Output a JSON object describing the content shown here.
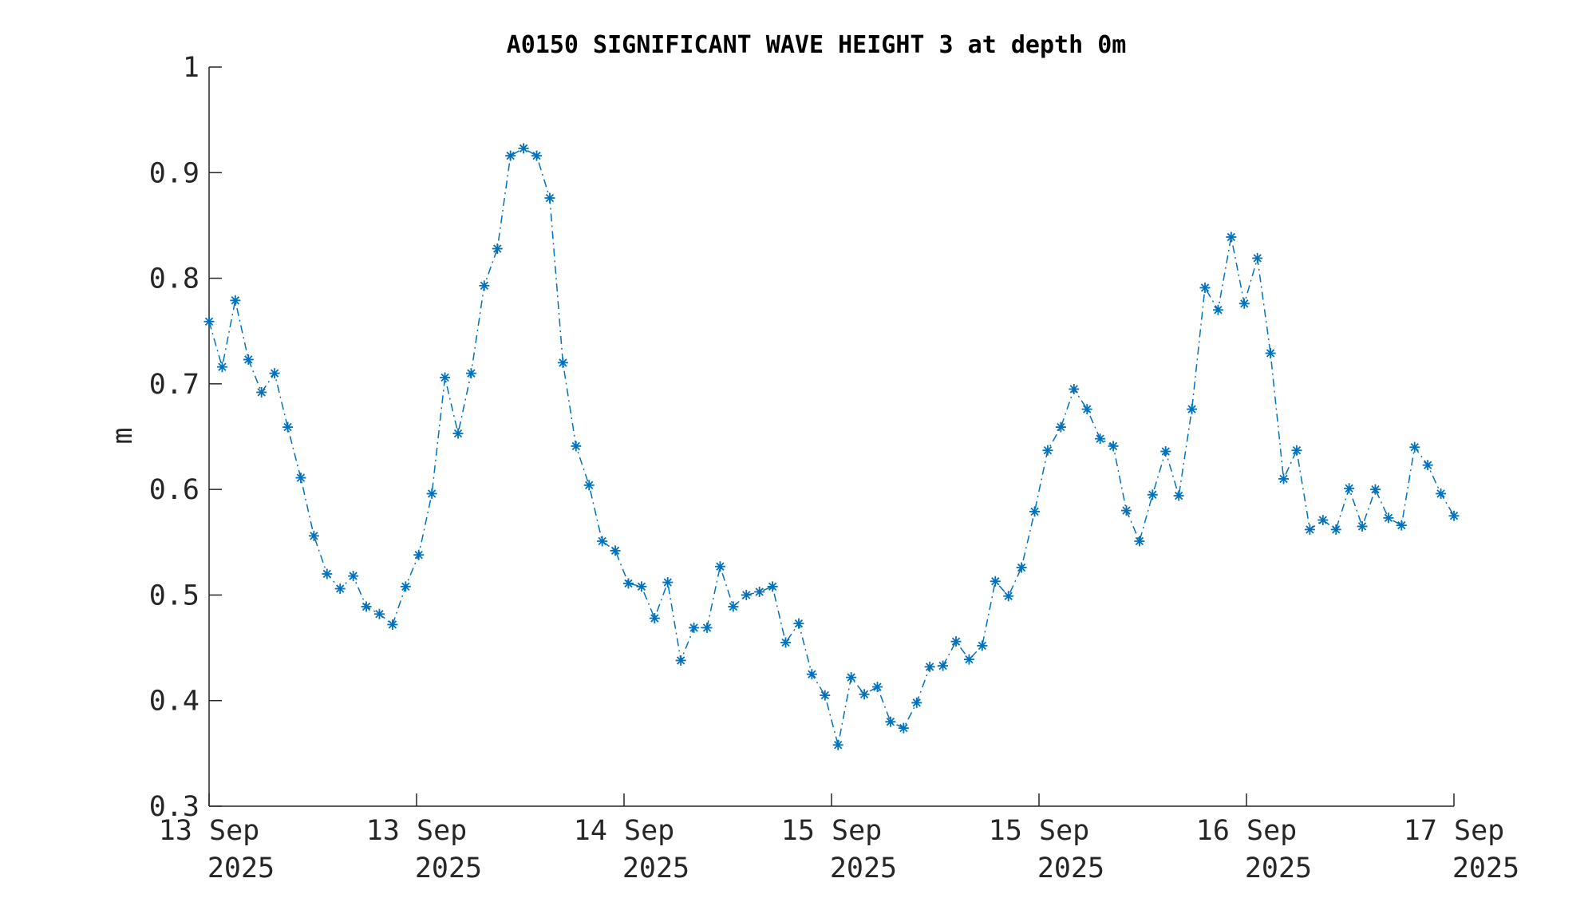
{
  "chart_data": {
    "type": "line",
    "title": "A0150 SIGNIFICANT WAVE HEIGHT 3 at depth 0m",
    "xlabel": "",
    "ylabel": "m",
    "ylim": [
      0.3,
      1
    ],
    "yticks": [
      "0.3",
      "0.4",
      "0.5",
      "0.6",
      "0.7",
      "0.8",
      "0.9",
      "1"
    ],
    "xticks": [
      {
        "line1": "13 Sep",
        "line2": "2025"
      },
      {
        "line1": "13 Sep",
        "line2": "2025"
      },
      {
        "line1": "14 Sep",
        "line2": "2025"
      },
      {
        "line1": "15 Sep",
        "line2": "2025"
      },
      {
        "line1": "15 Sep",
        "line2": "2025"
      },
      {
        "line1": "16 Sep",
        "line2": "2025"
      },
      {
        "line1": "17 Sep",
        "line2": "2025"
      }
    ],
    "marker": "asterisk",
    "line_style": "dash-dot",
    "grid": false,
    "series": [
      {
        "color": "#0072BD",
        "values": [
          0.759,
          0.716,
          0.779,
          0.723,
          0.692,
          0.71,
          0.659,
          0.611,
          0.556,
          0.52,
          0.506,
          0.518,
          0.489,
          0.482,
          0.472,
          0.508,
          0.538,
          0.596,
          0.706,
          0.653,
          0.71,
          0.793,
          0.828,
          0.916,
          0.923,
          0.916,
          0.876,
          0.72,
          0.641,
          0.604,
          0.551,
          0.542,
          0.511,
          0.508,
          0.478,
          0.512,
          0.438,
          0.469,
          0.469,
          0.527,
          0.489,
          0.5,
          0.503,
          0.508,
          0.455,
          0.473,
          0.425,
          0.405,
          0.358,
          0.422,
          0.406,
          0.413,
          0.38,
          0.374,
          0.398,
          0.432,
          0.433,
          0.456,
          0.439,
          0.452,
          0.513,
          0.499,
          0.526,
          0.579,
          0.637,
          0.659,
          0.695,
          0.676,
          0.648,
          0.641,
          0.58,
          0.551,
          0.595,
          0.636,
          0.594,
          0.676,
          0.791,
          0.77,
          0.839,
          0.776,
          0.819,
          0.729,
          0.61,
          0.637,
          0.562,
          0.571,
          0.562,
          0.601,
          0.565,
          0.6,
          0.573,
          0.566,
          0.64,
          0.623,
          0.596,
          0.575
        ]
      }
    ]
  }
}
